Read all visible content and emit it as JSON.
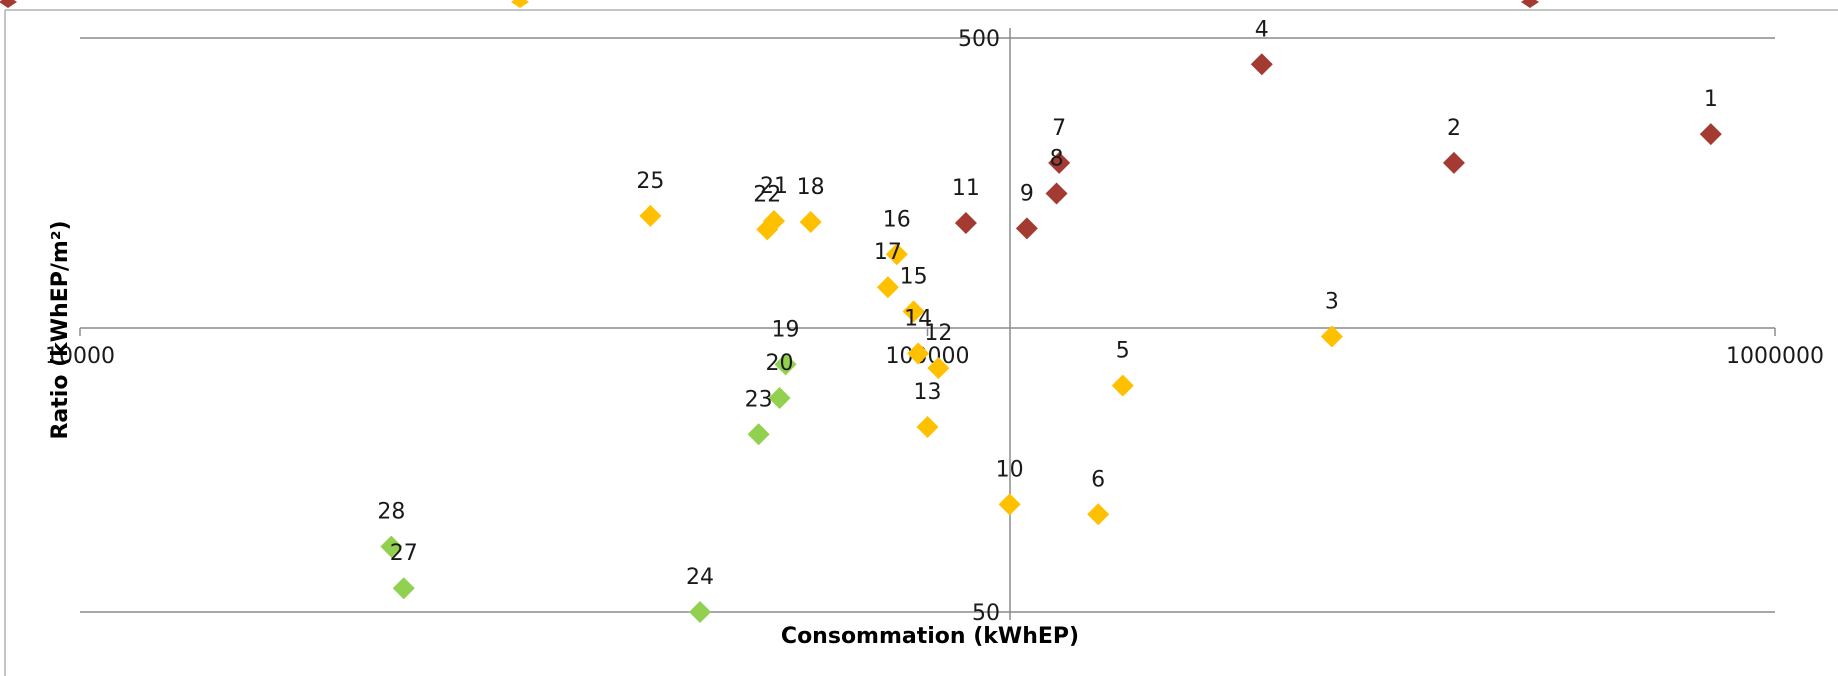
{
  "chart_data": {
    "type": "scatter",
    "title": "",
    "xlabel": "Consommation (kWhEP)",
    "ylabel": "Ratio (kWhEP/m²)",
    "x_scale": "log",
    "y_scale": "log",
    "xlim": [
      10000,
      1000000
    ],
    "ylim": [
      50,
      500
    ],
    "x_ticks": [
      {
        "value": 10000,
        "label": "10000"
      },
      {
        "value": 100000,
        "label": "100000"
      },
      {
        "value": 1000000,
        "label": "1000000"
      }
    ],
    "y_ticks": [
      {
        "value": 50,
        "label": "50"
      },
      {
        "value": 500,
        "label": "500"
      }
    ],
    "grid": true,
    "legend_position": "top",
    "colors": {
      "red": "#A33B32",
      "orange": "#FFC000",
      "green": "#92D050"
    },
    "points": [
      {
        "id": "1",
        "x": 840000,
        "y": 340,
        "color": "red"
      },
      {
        "id": "2",
        "x": 418000,
        "y": 303,
        "color": "red"
      },
      {
        "id": "3",
        "x": 300000,
        "y": 151,
        "color": "orange"
      },
      {
        "id": "4",
        "x": 248000,
        "y": 450,
        "color": "red"
      },
      {
        "id": "5",
        "x": 170000,
        "y": 124,
        "color": "orange"
      },
      {
        "id": "6",
        "x": 159000,
        "y": 74,
        "color": "orange"
      },
      {
        "id": "7",
        "x": 143000,
        "y": 303,
        "color": "red"
      },
      {
        "id": "8",
        "x": 142000,
        "y": 268,
        "color": "red"
      },
      {
        "id": "9",
        "x": 131000,
        "y": 233,
        "color": "red"
      },
      {
        "id": "10",
        "x": 125000,
        "y": 77,
        "color": "orange"
      },
      {
        "id": "11",
        "x": 111000,
        "y": 238,
        "color": "red"
      },
      {
        "id": "12",
        "x": 103000,
        "y": 133,
        "color": "orange"
      },
      {
        "id": "13",
        "x": 100000,
        "y": 105,
        "color": "orange"
      },
      {
        "id": "14",
        "x": 97500,
        "y": 141,
        "color": "orange"
      },
      {
        "id": "15",
        "x": 96300,
        "y": 167,
        "color": "orange"
      },
      {
        "id": "16",
        "x": 92000,
        "y": 210,
        "color": "orange"
      },
      {
        "id": "17",
        "x": 89800,
        "y": 184,
        "color": "orange"
      },
      {
        "id": "18",
        "x": 72800,
        "y": 239,
        "color": "orange"
      },
      {
        "id": "19",
        "x": 68000,
        "y": 135,
        "color": "green"
      },
      {
        "id": "20",
        "x": 66900,
        "y": 118,
        "color": "green"
      },
      {
        "id": "21",
        "x": 65900,
        "y": 240,
        "color": "orange"
      },
      {
        "id": "22",
        "x": 64700,
        "y": 232,
        "color": "orange"
      },
      {
        "id": "23",
        "x": 63200,
        "y": 102,
        "color": "green"
      },
      {
        "id": "24",
        "x": 53900,
        "y": 50,
        "color": "green"
      },
      {
        "id": "25",
        "x": 47100,
        "y": 245,
        "color": "orange"
      },
      {
        "id": "27",
        "x": 24100,
        "y": 55,
        "color": "green"
      },
      {
        "id": "28",
        "x": 23300,
        "y": 65,
        "color": "green"
      }
    ]
  }
}
